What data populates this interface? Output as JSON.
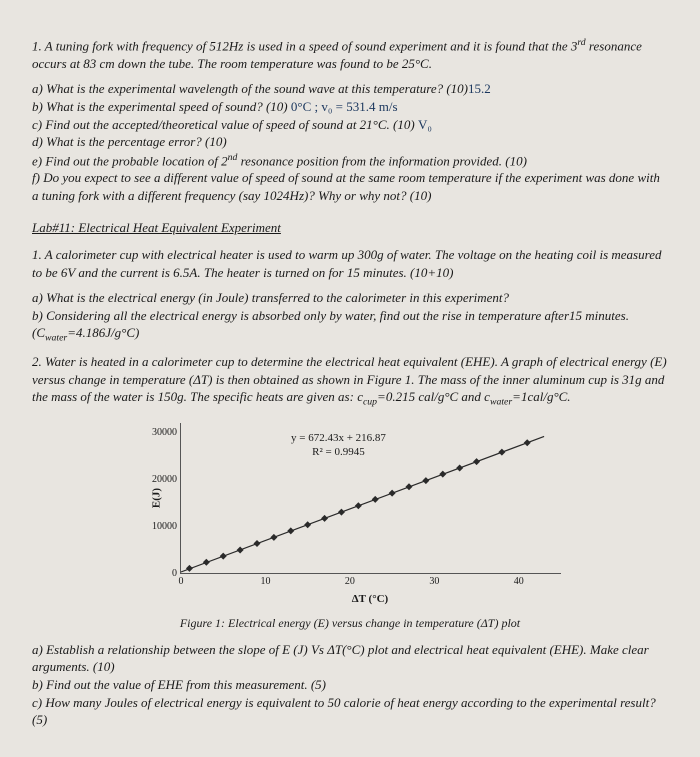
{
  "problem1": {
    "intro": "1. A tuning fork with frequency of 512Hz is used in a speed of sound experiment and it is found that the 3",
    "intro2": " resonance occurs at 83 cm down the tube. The room temperature was found to be 25°C.",
    "a": "a) What is the experimental wavelength of the sound wave at this temperature? (10)",
    "a_hand": "15.2",
    "b": "b) What is the experimental speed of sound?  (10)",
    "b_hand": "0°C ; v₀ = 531.4 m/s",
    "c": "c) Find out the accepted/theoretical value of speed of sound at 21°C. (10)",
    "c_hand": "V₀",
    "d": "d) What is the percentage error? (10)",
    "e_pre": "e) Find out the probable location of 2",
    "e_post": " resonance position from the information provided. (10)",
    "f": "f) Do you expect to see a different value of speed of sound at the same room temperature if the experiment was done with a tuning fork with a different frequency (say 1024Hz)? Why or why not? (10)"
  },
  "lab_title": "Lab#11: Electrical Heat Equivalent Experiment",
  "lab1": {
    "intro": "1.  A calorimeter cup with electrical heater is used to warm up 300g of water. The voltage on the heating coil is measured to be 6V and the current is 6.5A. The heater is turned on for 15 minutes. (10+10)",
    "a": "a) What is the electrical energy (in Joule) transferred to the calorimeter in this experiment?",
    "b": "b) Considering all the electrical energy is absorbed only by water, find out the rise in temperature after15 minutes.",
    "cwater": "(Cwater=4.186J/g°C)"
  },
  "lab2": {
    "intro_pre": "2. Water is heated in a calorimeter cup to determine the electrical heat equivalent (EHE). A graph of electrical energy (E) versus change in temperature (ΔT) is then obtained as shown in Figure 1. The mass of the inner aluminum cup is 31g and the mass of the water is 150g. The specific heats are given as: c",
    "intro_cup": "=0.215 cal/g°C and c",
    "intro_post": "=1cal/g°C."
  },
  "chart": {
    "ylabel": "E(J)",
    "xlabel": "ΔT (°C)",
    "yticks": [
      {
        "v": 0,
        "label": "0"
      },
      {
        "v": 10000,
        "label": "10000"
      },
      {
        "v": 20000,
        "label": "20000"
      },
      {
        "v": 30000,
        "label": "30000"
      }
    ],
    "xticks": [
      {
        "v": 0,
        "label": "0"
      },
      {
        "v": 10,
        "label": "10"
      },
      {
        "v": 20,
        "label": "20"
      },
      {
        "v": 30,
        "label": "30"
      },
      {
        "v": 40,
        "label": "40"
      }
    ],
    "xlim": [
      0,
      45
    ],
    "ylim": [
      0,
      32000
    ],
    "eqn": "y = 672.43x + 216.87",
    "r2": "R² = 0.9945",
    "points": [
      {
        "x": 1,
        "y": 1000
      },
      {
        "x": 3,
        "y": 2300
      },
      {
        "x": 5,
        "y": 3600
      },
      {
        "x": 7,
        "y": 4900
      },
      {
        "x": 9,
        "y": 6300
      },
      {
        "x": 11,
        "y": 7600
      },
      {
        "x": 13,
        "y": 9000
      },
      {
        "x": 15,
        "y": 10300
      },
      {
        "x": 17,
        "y": 11650
      },
      {
        "x": 19,
        "y": 13000
      },
      {
        "x": 21,
        "y": 14350
      },
      {
        "x": 23,
        "y": 15700
      },
      {
        "x": 25,
        "y": 17050
      },
      {
        "x": 27,
        "y": 18400
      },
      {
        "x": 29,
        "y": 19700
      },
      {
        "x": 31,
        "y": 21100
      },
      {
        "x": 33,
        "y": 22400
      },
      {
        "x": 35,
        "y": 23750
      },
      {
        "x": 38,
        "y": 25800
      },
      {
        "x": 41,
        "y": 27800
      }
    ],
    "line_color": "#2a2a2a",
    "marker_color": "#2a2a2a",
    "marker_size": 3.5
  },
  "figure_caption": "Figure 1:  Electrical energy (E) versus change in temperature (ΔT) plot",
  "questions2": {
    "a": "a) Establish a relationship between the slope of E (J) Vs ΔT(°C) plot and electrical heat equivalent (EHE). Make clear arguments. (10)",
    "b": "b) Find out the value of EHE from this measurement. (5)",
    "c": "c) How many Joules of electrical energy is equivalent to 50 calorie of heat energy according to the experimental result? (5)"
  }
}
